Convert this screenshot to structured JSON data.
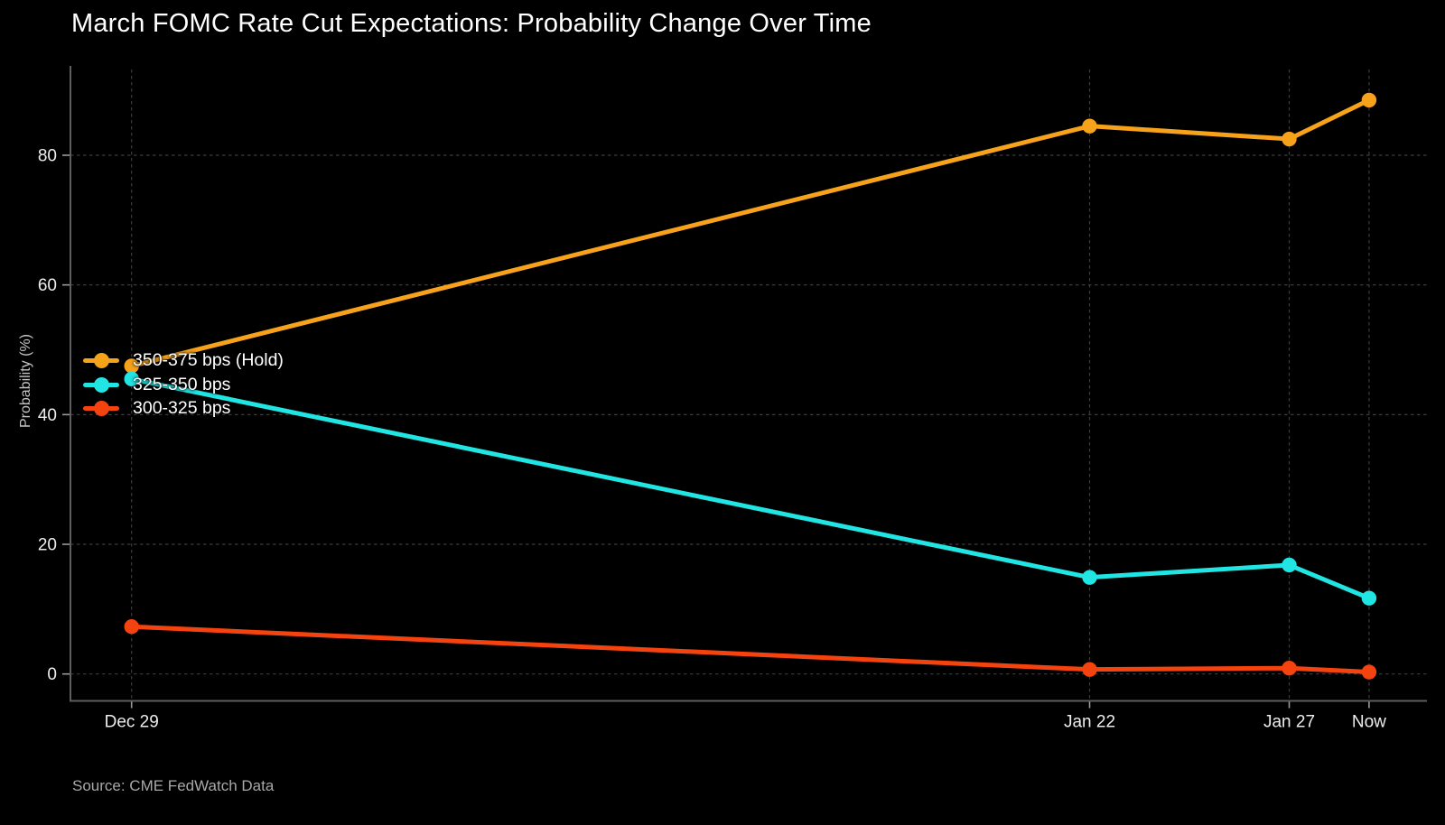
{
  "header": {
    "title": "March FOMC Rate Cut Expectations: Probability Change Over Time"
  },
  "footer": {
    "source": "Source: CME FedWatch Data"
  },
  "colors": {
    "background": "#000000",
    "title_text": "#ffffff",
    "axis_line": "#5e5e5e",
    "gridline": "#3c3c3c",
    "tick_label": "#ededed",
    "axis_title": "#c4c4c4",
    "source_text": "#a8a8a8",
    "series_hold": "#F6A21A",
    "series_325_350": "#20E5E3",
    "series_300_325": "#F4430E"
  },
  "chart_data": {
    "type": "line",
    "title": "March FOMC Rate Cut Expectations: Probability Change Over Time",
    "xlabel": "",
    "ylabel": "Probability (%)",
    "x_categories": [
      "Dec 29",
      "Jan 22",
      "Jan 27",
      "Now"
    ],
    "x_day_offsets": [
      0,
      24,
      29,
      31
    ],
    "yticks": [
      0,
      20,
      40,
      60,
      80
    ],
    "ylim": [
      0,
      94
    ],
    "grid": "dashed-both-axes",
    "legend_position": "inside-upper-left",
    "marker_style": "filled-circle",
    "series": [
      {
        "name": "350-375 bps (Hold)",
        "color": "#F6A21A",
        "values": [
          47.5,
          84.5,
          82.5,
          88.5
        ]
      },
      {
        "name": "325-350 bps",
        "color": "#20E5E3",
        "values": [
          45.5,
          14.9,
          16.8,
          11.7
        ]
      },
      {
        "name": "300-325 bps",
        "color": "#F4430E",
        "values": [
          7.3,
          0.7,
          0.9,
          0.3
        ]
      }
    ]
  }
}
